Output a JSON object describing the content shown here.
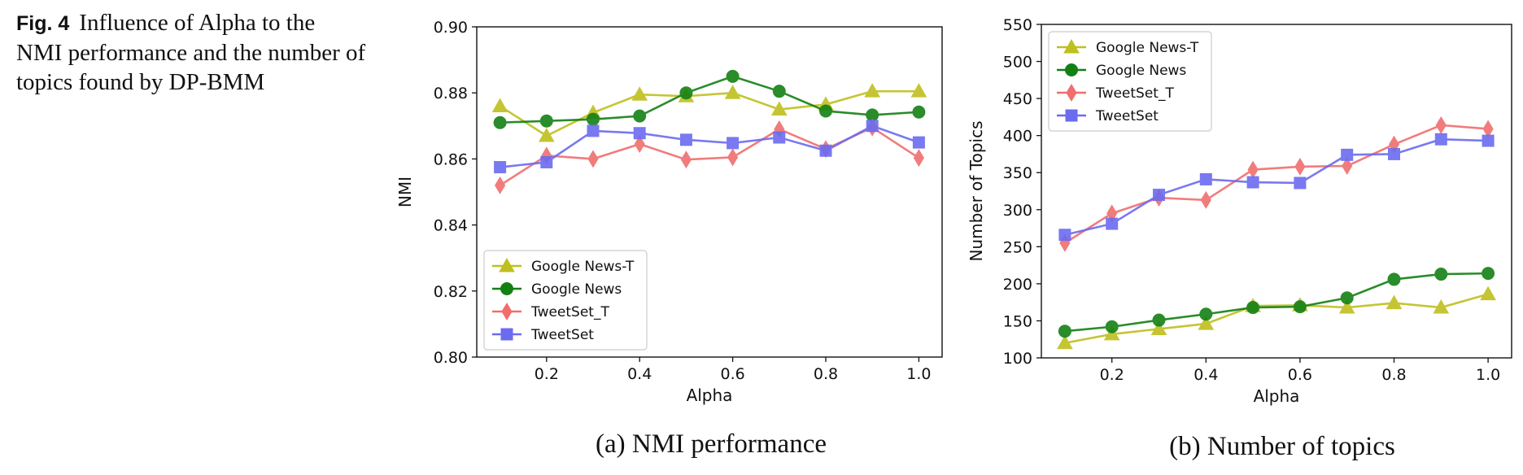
{
  "figure": {
    "label": "Fig. 4",
    "caption": "Influence of Alpha to the NMI performance and the number of topics found by DP-BMM"
  },
  "colors": {
    "google_news_t": "#bfbf1f",
    "google_news": "#138013",
    "tweetset_t": "#f06e6e",
    "tweetset": "#6b6bf0"
  },
  "chart_data": [
    {
      "type": "line",
      "caption": "(a) NMI performance",
      "xlabel": "Alpha",
      "ylabel": "NMI",
      "xlim": [
        0.05,
        1.05
      ],
      "ylim": [
        0.8,
        0.9
      ],
      "xticks": [
        0.2,
        0.4,
        0.6,
        0.8,
        1.0
      ],
      "yticks": [
        0.8,
        0.82,
        0.84,
        0.86,
        0.88,
        0.9
      ],
      "x_tick_labels": [
        "0.2",
        "0.4",
        "0.6",
        "0.8",
        "1.0"
      ],
      "y_tick_labels": [
        "0.80",
        "0.82",
        "0.84",
        "0.86",
        "0.88",
        "0.90"
      ],
      "grid": false,
      "legend_position": "lower-left",
      "x": [
        0.1,
        0.2,
        0.3,
        0.4,
        0.5,
        0.6,
        0.7,
        0.8,
        0.9,
        1.0
      ],
      "series": [
        {
          "name": "Google News-T",
          "marker": "triangle",
          "color_key": "google_news_t",
          "values": [
            0.876,
            0.867,
            0.874,
            0.8795,
            0.879,
            0.88,
            0.875,
            0.8765,
            0.8805,
            0.8805
          ]
        },
        {
          "name": "Google News",
          "marker": "circle",
          "color_key": "google_news",
          "values": [
            0.871,
            0.8715,
            0.872,
            0.873,
            0.88,
            0.885,
            0.8805,
            0.8745,
            0.8733,
            0.8742
          ]
        },
        {
          "name": "TweetSet_T",
          "marker": "diamond",
          "color_key": "tweetset_t",
          "values": [
            0.852,
            0.861,
            0.86,
            0.8645,
            0.8598,
            0.8605,
            0.869,
            0.863,
            0.8695,
            0.8603
          ]
        },
        {
          "name": "TweetSet",
          "marker": "square",
          "color_key": "tweetset",
          "values": [
            0.8575,
            0.859,
            0.8685,
            0.8678,
            0.8658,
            0.8648,
            0.8665,
            0.8625,
            0.87,
            0.865
          ]
        }
      ]
    },
    {
      "type": "line",
      "caption": "(b) Number of topics",
      "xlabel": "Alpha",
      "ylabel": "Number of Topics",
      "xlim": [
        0.05,
        1.05
      ],
      "ylim": [
        100,
        550
      ],
      "xticks": [
        0.2,
        0.4,
        0.6,
        0.8,
        1.0
      ],
      "yticks": [
        100,
        150,
        200,
        250,
        300,
        350,
        400,
        450,
        500,
        550
      ],
      "x_tick_labels": [
        "0.2",
        "0.4",
        "0.6",
        "0.8",
        "1.0"
      ],
      "y_tick_labels": [
        "100",
        "150",
        "200",
        "250",
        "300",
        "350",
        "400",
        "450",
        "500",
        "550"
      ],
      "grid": false,
      "legend_position": "upper-left",
      "x": [
        0.1,
        0.2,
        0.3,
        0.4,
        0.5,
        0.6,
        0.7,
        0.8,
        0.9,
        1.0
      ],
      "series": [
        {
          "name": "Google News-T",
          "marker": "triangle",
          "color_key": "google_news_t",
          "values": [
            120,
            132,
            139,
            146,
            170,
            171,
            168,
            174,
            168,
            186
          ]
        },
        {
          "name": "Google News",
          "marker": "circle",
          "color_key": "google_news",
          "values": [
            136,
            142,
            151,
            159,
            168,
            169,
            181,
            206,
            213,
            214
          ]
        },
        {
          "name": "TweetSet_T",
          "marker": "diamond",
          "color_key": "tweetset_t",
          "values": [
            255,
            295,
            316,
            313,
            354,
            358,
            359,
            388,
            414,
            409
          ]
        },
        {
          "name": "TweetSet",
          "marker": "square",
          "color_key": "tweetset",
          "values": [
            266,
            281,
            320,
            341,
            337,
            336,
            374,
            375,
            395,
            393
          ]
        }
      ]
    }
  ]
}
